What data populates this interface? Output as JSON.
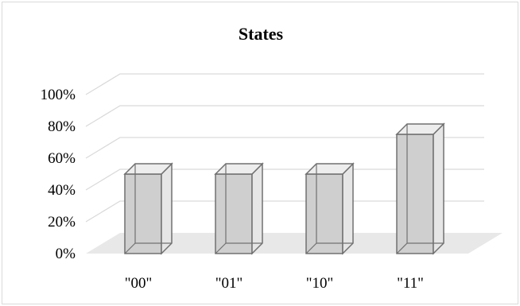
{
  "chart_data": {
    "type": "bar",
    "title": "States",
    "categories": [
      "\"00\"",
      "\"01\"",
      "\"10\"",
      "\"11\""
    ],
    "values": [
      50,
      50,
      50,
      75
    ],
    "ylim": [
      0,
      100
    ],
    "y_ticks": [
      "0%",
      "20%",
      "40%",
      "60%",
      "80%",
      "100%"
    ],
    "xlabel": "",
    "ylabel": "",
    "grid": true,
    "style": "3d-column",
    "colors": {
      "bar_front": "#cfcfcf",
      "bar_side": "#e6e6e6",
      "bar_top": "#ededed",
      "bar_edge": "#707070",
      "floor": "#e8e8e8",
      "grid": "#d9d9d9"
    }
  }
}
